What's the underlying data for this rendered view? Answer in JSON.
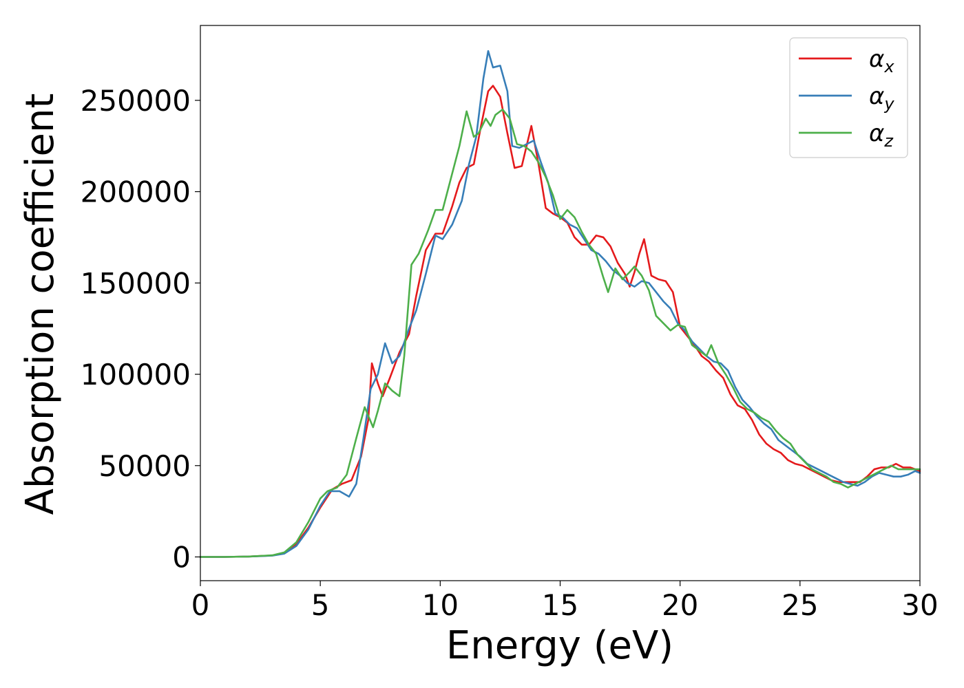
{
  "chart_data": {
    "type": "line",
    "xlabel": "Energy (eV)",
    "ylabel": "Absorption coefficient",
    "xlim": [
      0,
      30
    ],
    "ylim": [
      -13000,
      291000
    ],
    "xticks": [
      0,
      5,
      10,
      15,
      20,
      25,
      30
    ],
    "yticks": [
      0,
      50000,
      100000,
      150000,
      200000,
      250000
    ],
    "grid": false,
    "legend_position": "top-right",
    "series": [
      {
        "name": "α",
        "subscript": "x",
        "color": "#e41a1c",
        "x": [
          0,
          1,
          2,
          3,
          3.5,
          4,
          4.5,
          5,
          5.5,
          5.9,
          6.3,
          6.7,
          7.0,
          7.15,
          7.4,
          7.6,
          7.9,
          8.3,
          8.7,
          9.0,
          9.4,
          9.8,
          10.1,
          10.5,
          10.8,
          11.1,
          11.4,
          11.7,
          12.0,
          12.2,
          12.5,
          12.8,
          13.1,
          13.4,
          13.6,
          13.8,
          14.1,
          14.4,
          14.7,
          15.0,
          15.3,
          15.6,
          15.9,
          16.2,
          16.5,
          16.8,
          17.1,
          17.4,
          17.7,
          17.9,
          18.1,
          18.3,
          18.5,
          18.8,
          19.1,
          19.4,
          19.7,
          20.0,
          20.3,
          20.6,
          20.9,
          21.2,
          21.5,
          21.8,
          22.1,
          22.4,
          22.7,
          23.0,
          23.3,
          23.6,
          23.9,
          24.2,
          24.5,
          24.8,
          25.1,
          25.4,
          25.7,
          26.0,
          26.3,
          26.6,
          26.9,
          27.2,
          27.5,
          27.8,
          28.1,
          28.4,
          28.7,
          29.0,
          29.3,
          29.6,
          30.0
        ],
        "y": [
          0,
          0,
          200,
          800,
          2000,
          7000,
          16000,
          27000,
          37000,
          40000,
          42000,
          55000,
          75000,
          106000,
          95000,
          88000,
          98000,
          112000,
          122000,
          143000,
          168000,
          177000,
          177000,
          192000,
          205000,
          213000,
          215000,
          236000,
          255000,
          258000,
          252000,
          232000,
          213000,
          214000,
          225000,
          236000,
          215000,
          191000,
          188000,
          186000,
          183000,
          175000,
          171000,
          171000,
          176000,
          175000,
          170000,
          161000,
          155000,
          148000,
          156000,
          166000,
          174000,
          154000,
          152000,
          151000,
          145000,
          126000,
          121000,
          116000,
          110000,
          107000,
          102000,
          98000,
          89000,
          83000,
          81000,
          75000,
          67000,
          62000,
          59000,
          57000,
          53000,
          51000,
          50000,
          48000,
          46000,
          44000,
          42000,
          41000,
          41000,
          41000,
          41000,
          44000,
          48000,
          49000,
          49000,
          51000,
          49000,
          49000,
          47000
        ]
      },
      {
        "name": "α",
        "subscript": "y",
        "color": "#377eb8",
        "x": [
          0,
          1,
          2,
          3,
          3.5,
          4,
          4.5,
          5,
          5.4,
          5.8,
          6.2,
          6.5,
          6.8,
          7.1,
          7.4,
          7.7,
          8.0,
          8.3,
          8.7,
          9.0,
          9.4,
          9.8,
          10.1,
          10.5,
          10.9,
          11.2,
          11.5,
          11.8,
          12.0,
          12.2,
          12.5,
          12.8,
          13.0,
          13.3,
          13.6,
          13.9,
          14.2,
          14.5,
          14.8,
          15.1,
          15.4,
          15.7,
          16.0,
          16.3,
          16.6,
          16.9,
          17.2,
          17.5,
          17.8,
          18.1,
          18.4,
          18.7,
          19.0,
          19.3,
          19.6,
          19.9,
          20.2,
          20.5,
          20.8,
          21.1,
          21.4,
          21.7,
          22.0,
          22.3,
          22.6,
          22.9,
          23.2,
          23.5,
          23.8,
          24.1,
          24.4,
          24.7,
          25.0,
          25.3,
          25.6,
          25.9,
          26.2,
          26.5,
          26.8,
          27.1,
          27.4,
          27.7,
          28.0,
          28.3,
          28.6,
          28.9,
          29.2,
          29.5,
          29.8,
          30.0
        ],
        "y": [
          0,
          0,
          200,
          700,
          1800,
          6000,
          15000,
          28000,
          36000,
          36000,
          33000,
          40000,
          65000,
          92000,
          100000,
          117000,
          106000,
          110000,
          125000,
          135000,
          155000,
          176000,
          174000,
          182000,
          195000,
          215000,
          230000,
          262000,
          277000,
          268000,
          269000,
          255000,
          225000,
          224000,
          226000,
          228000,
          216000,
          205000,
          188000,
          186000,
          182000,
          180000,
          174000,
          168000,
          166000,
          162000,
          157000,
          154000,
          150000,
          148000,
          151000,
          150000,
          145000,
          140000,
          136000,
          128000,
          124000,
          118000,
          114000,
          110000,
          107000,
          106000,
          102000,
          93000,
          86000,
          82000,
          77000,
          73000,
          70000,
          64000,
          61000,
          58000,
          55000,
          51000,
          49000,
          47000,
          45000,
          43000,
          41000,
          40000,
          39000,
          41000,
          44000,
          46000,
          45000,
          44000,
          44000,
          45000,
          47000,
          46000
        ]
      },
      {
        "name": "α",
        "subscript": "z",
        "color": "#4daf4a",
        "x": [
          0,
          1,
          2,
          3,
          3.5,
          4,
          4.5,
          5,
          5.3,
          5.7,
          6.1,
          6.5,
          6.85,
          7.2,
          7.4,
          7.7,
          8.0,
          8.3,
          8.5,
          8.8,
          9.1,
          9.5,
          9.8,
          10.1,
          10.4,
          10.8,
          11.1,
          11.4,
          11.6,
          11.9,
          12.1,
          12.3,
          12.6,
          12.9,
          13.2,
          13.5,
          13.8,
          14.1,
          14.4,
          14.7,
          15.0,
          15.3,
          15.6,
          15.9,
          16.2,
          16.5,
          16.8,
          17.0,
          17.3,
          17.6,
          17.9,
          18.1,
          18.4,
          18.7,
          19.0,
          19.3,
          19.6,
          19.9,
          20.2,
          20.5,
          20.8,
          21.1,
          21.3,
          21.6,
          21.9,
          22.2,
          22.5,
          22.8,
          23.1,
          23.4,
          23.7,
          24.0,
          24.3,
          24.6,
          24.9,
          25.2,
          25.5,
          25.8,
          26.1,
          26.4,
          26.7,
          27.0,
          27.3,
          27.6,
          27.9,
          28.2,
          28.5,
          28.8,
          29.1,
          29.4,
          29.7,
          30.0
        ],
        "y": [
          0,
          0,
          200,
          900,
          2500,
          8000,
          19000,
          32000,
          36000,
          38000,
          45000,
          65000,
          82000,
          71000,
          80000,
          95000,
          91000,
          88000,
          110000,
          160000,
          166000,
          179000,
          190000,
          190000,
          205000,
          225000,
          244000,
          230000,
          232000,
          240000,
          236000,
          242000,
          245000,
          240000,
          226000,
          225000,
          222000,
          216000,
          208000,
          198000,
          185000,
          190000,
          186000,
          178000,
          171000,
          166000,
          153000,
          145000,
          158000,
          152000,
          156000,
          159000,
          154000,
          146000,
          132000,
          128000,
          124000,
          127000,
          126000,
          116000,
          113000,
          110000,
          116000,
          106000,
          100000,
          93000,
          85000,
          81000,
          79000,
          76000,
          74000,
          69000,
          65000,
          62000,
          56000,
          52000,
          48000,
          46000,
          44000,
          41000,
          40000,
          38000,
          40000,
          42000,
          44000,
          46000,
          48000,
          50000,
          48000,
          48000,
          48000,
          48000
        ]
      }
    ]
  }
}
